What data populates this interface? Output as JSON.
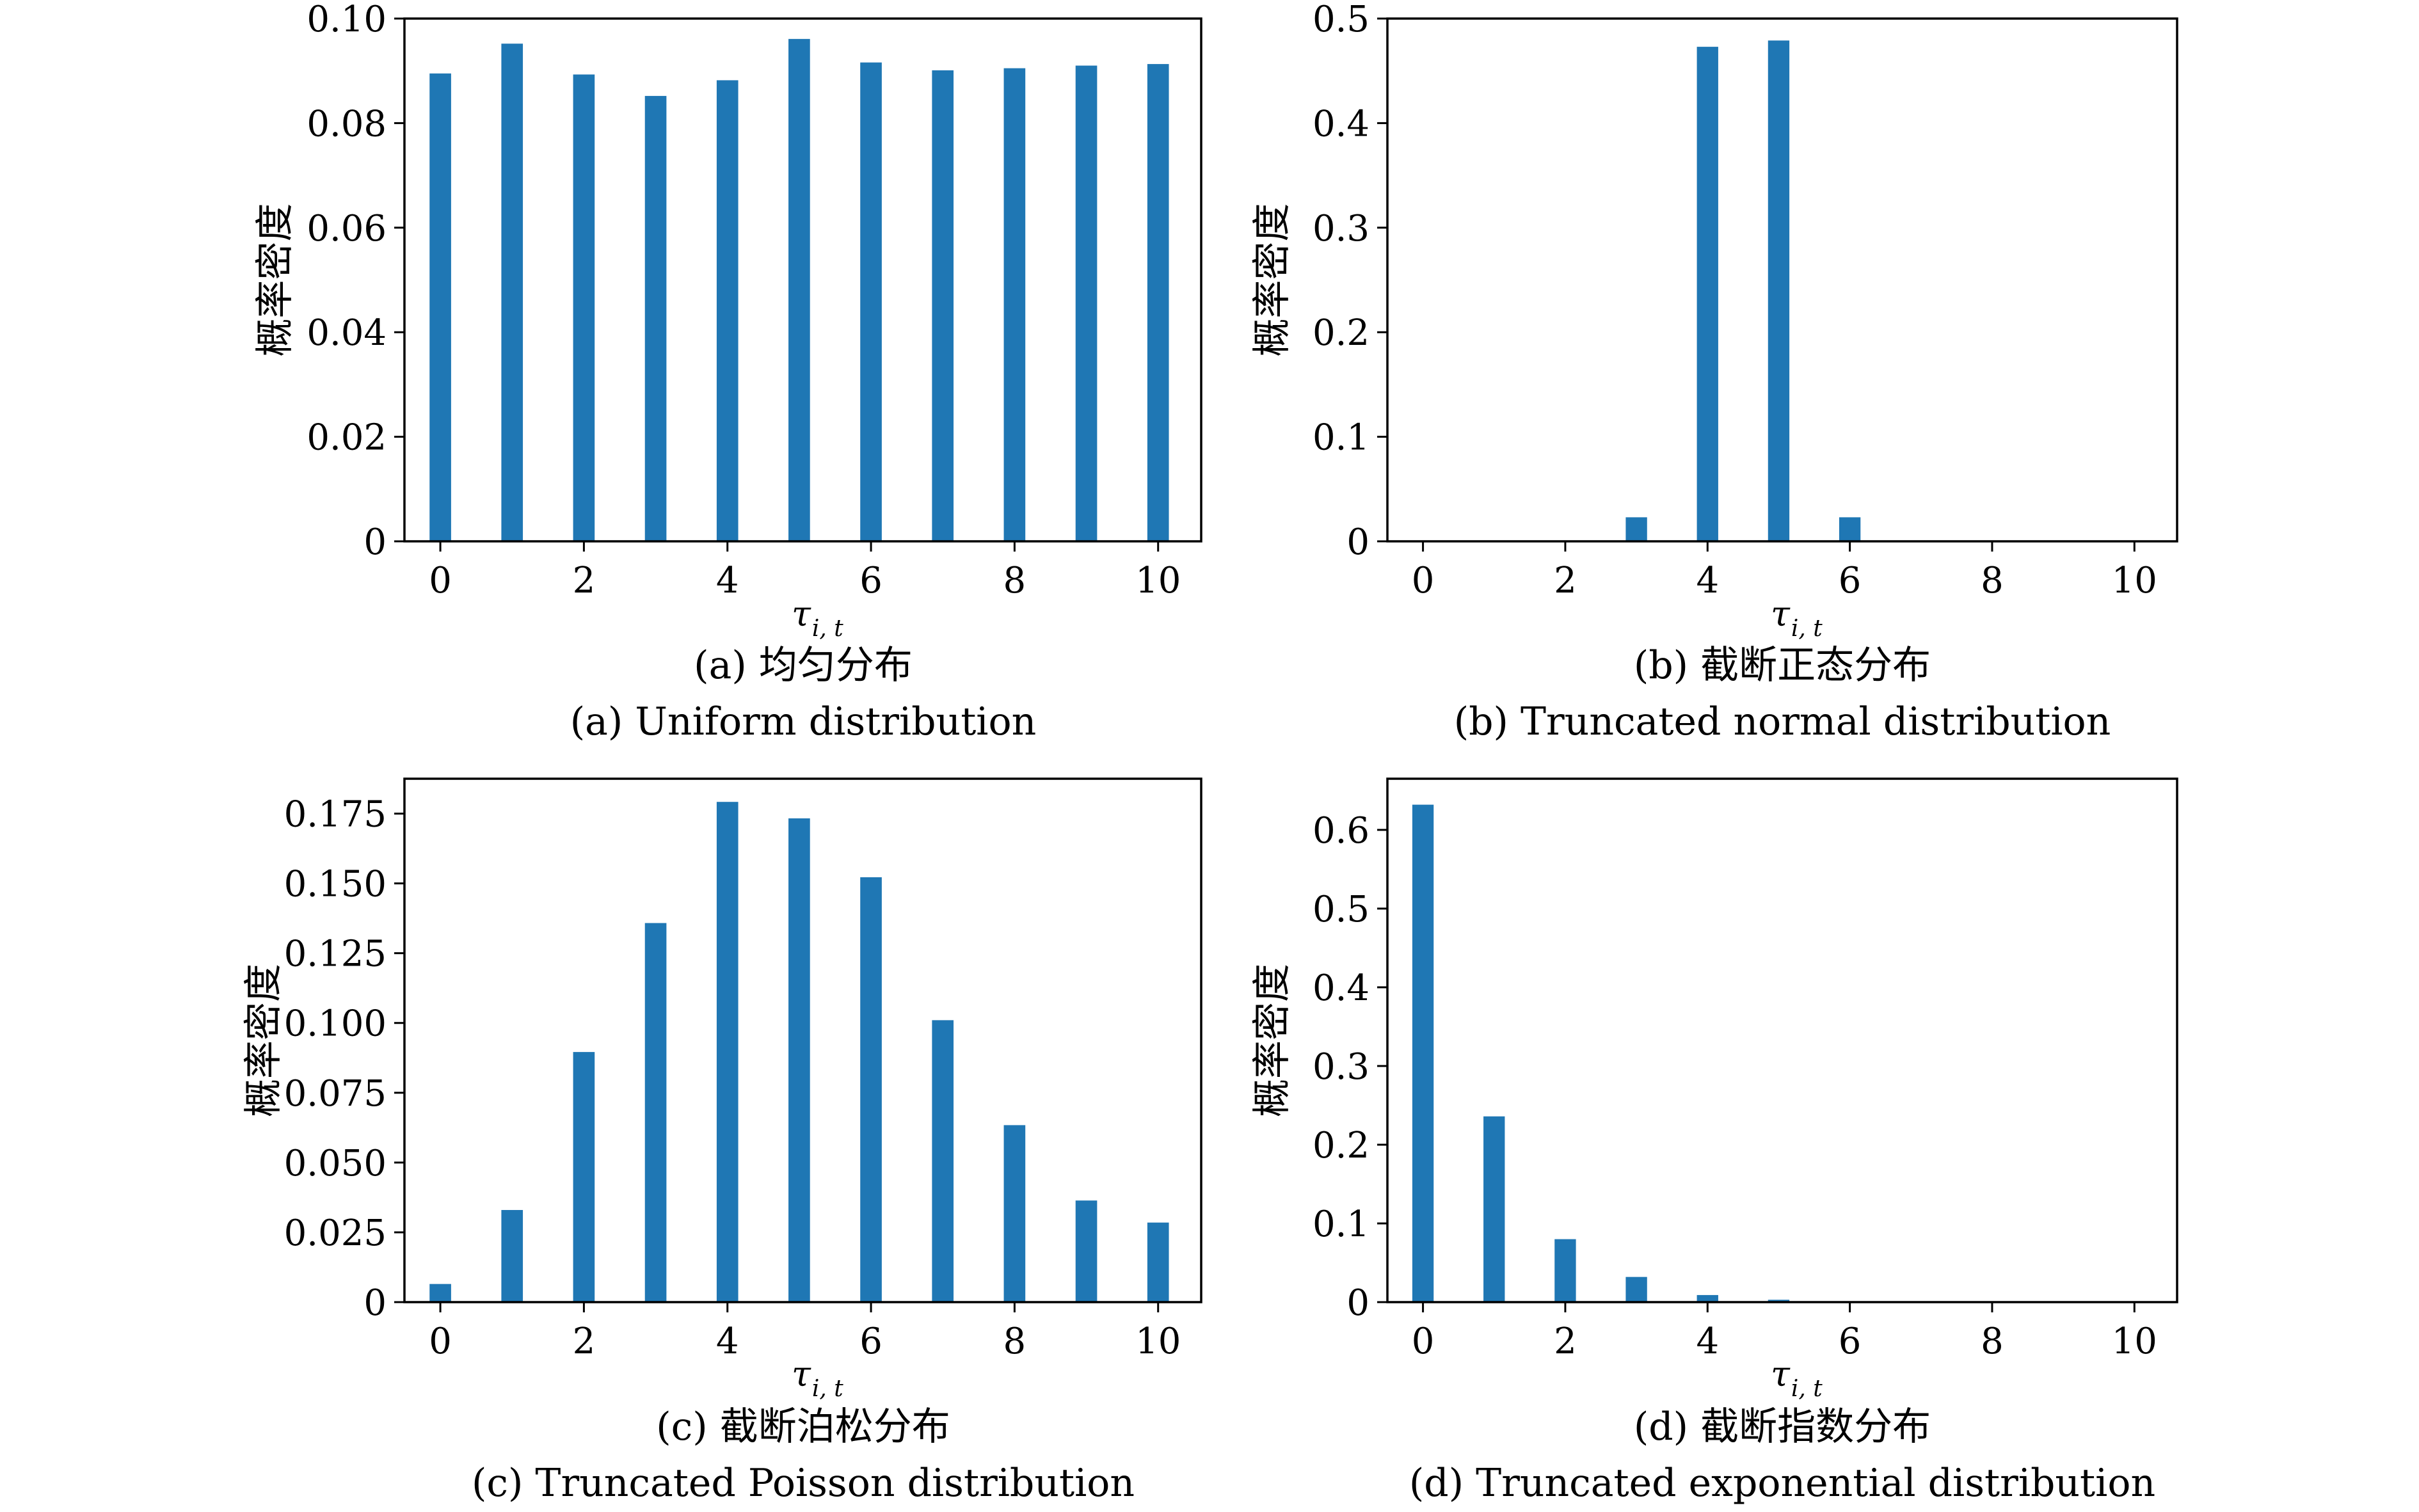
{
  "chart_data": [
    {
      "type": "bar",
      "ylabel": "概率密度",
      "xlabel": {
        "symbol": "τ",
        "subscript": "i, t"
      },
      "caption_cn": "(a) 均匀分布",
      "caption_en": "(a) Uniform distribution",
      "x": [
        0,
        1,
        2,
        3,
        4,
        5,
        6,
        7,
        8,
        9,
        10
      ],
      "values": [
        0.0895,
        0.0952,
        0.0893,
        0.0852,
        0.0882,
        0.0961,
        0.0916,
        0.0901,
        0.0905,
        0.091,
        0.0913
      ],
      "xlim": [
        -0.5,
        10.6
      ],
      "ylim": [
        0,
        0.1
      ],
      "xticks": [
        0,
        2,
        4,
        6,
        8,
        10
      ],
      "xtick_labels": [
        "0",
        "2",
        "4",
        "6",
        "8",
        "10"
      ],
      "yticks": [
        0,
        0.02,
        0.04,
        0.06,
        0.08,
        0.1
      ],
      "ytick_labels": [
        "0",
        "0.02",
        "0.04",
        "0.06",
        "0.08",
        "0.10"
      ],
      "bar_color": "#1f77b4",
      "grid": false,
      "legend": "none"
    },
    {
      "type": "bar",
      "ylabel": "概率密度",
      "xlabel": {
        "symbol": "τ",
        "subscript": "i, t"
      },
      "caption_cn": "(b) 截断正态分布",
      "caption_en": "(b) Truncated normal distribution",
      "x": [
        0,
        1,
        2,
        3,
        4,
        5,
        6,
        7,
        8,
        9,
        10
      ],
      "values": [
        0,
        0,
        0,
        0.023,
        0.473,
        0.479,
        0.023,
        0,
        0,
        0,
        0
      ],
      "xlim": [
        -0.5,
        10.6
      ],
      "ylim": [
        0,
        0.5
      ],
      "xticks": [
        0,
        2,
        4,
        6,
        8,
        10
      ],
      "xtick_labels": [
        "0",
        "2",
        "4",
        "6",
        "8",
        "10"
      ],
      "yticks": [
        0,
        0.1,
        0.2,
        0.3,
        0.4,
        0.5
      ],
      "ytick_labels": [
        "0",
        "0.1",
        "0.2",
        "0.3",
        "0.4",
        "0.5"
      ],
      "bar_color": "#1f77b4",
      "grid": false,
      "legend": "none"
    },
    {
      "type": "bar",
      "ylabel": "概率密度",
      "xlabel": {
        "symbol": "τ",
        "subscript": "i, t"
      },
      "caption_cn": "(c) 截断泊松分布",
      "caption_en": "(c) Truncated Poisson distribution",
      "x": [
        0,
        1,
        2,
        3,
        4,
        5,
        6,
        7,
        8,
        9,
        10
      ],
      "values": [
        0.0065,
        0.033,
        0.0896,
        0.1358,
        0.1792,
        0.1733,
        0.1522,
        0.101,
        0.0634,
        0.0364,
        0.0285
      ],
      "xlim": [
        -0.5,
        10.6
      ],
      "ylim": [
        0,
        0.1875
      ],
      "xticks": [
        0,
        2,
        4,
        6,
        8,
        10
      ],
      "xtick_labels": [
        "0",
        "2",
        "4",
        "6",
        "8",
        "10"
      ],
      "yticks": [
        0,
        0.025,
        0.05,
        0.075,
        0.1,
        0.125,
        0.15,
        0.175
      ],
      "ytick_labels": [
        "0",
        "0.025",
        "0.050",
        "0.075",
        "0.100",
        "0.125",
        "0.150",
        "0.175"
      ],
      "bar_color": "#1f77b4",
      "grid": false,
      "legend": "none"
    },
    {
      "type": "bar",
      "ylabel": "概率密度",
      "xlabel": {
        "symbol": "τ",
        "subscript": "i, t"
      },
      "caption_cn": "(d) 截断指数分布",
      "caption_en": "(d) Truncated exponential distribution",
      "x": [
        0,
        1,
        2,
        3,
        4,
        5,
        6,
        7,
        8,
        9,
        10
      ],
      "values": [
        0.632,
        0.236,
        0.08,
        0.032,
        0.009,
        0.003,
        0.001,
        0,
        0,
        0,
        0
      ],
      "xlim": [
        -0.5,
        10.6
      ],
      "ylim": [
        0,
        0.665
      ],
      "xticks": [
        0,
        2,
        4,
        6,
        8,
        10
      ],
      "xtick_labels": [
        "0",
        "2",
        "4",
        "6",
        "8",
        "10"
      ],
      "yticks": [
        0,
        0.1,
        0.2,
        0.3,
        0.4,
        0.5,
        0.6
      ],
      "ytick_labels": [
        "0",
        "0.1",
        "0.2",
        "0.3",
        "0.4",
        "0.5",
        "0.6"
      ],
      "bar_color": "#1f77b4",
      "grid": false,
      "legend": "none"
    }
  ]
}
